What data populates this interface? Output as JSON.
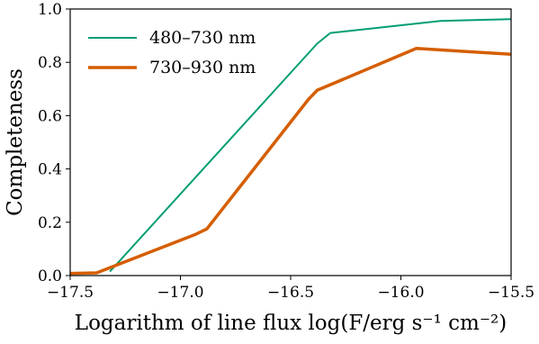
{
  "chart_data": {
    "type": "line",
    "title": "",
    "xlabel": "Logarithm of line flux log(F/erg s⁻¹ cm⁻²)",
    "ylabel": "Completeness",
    "xlim": [
      -17.5,
      -15.5
    ],
    "ylim": [
      0.0,
      1.0
    ],
    "xticks": [
      -17.5,
      -17.0,
      -16.5,
      -16.0,
      -15.5
    ],
    "xtick_labels": [
      "−17.5",
      "−17.0",
      "−16.5",
      "−16.0",
      "−15.5"
    ],
    "yticks": [
      0.0,
      0.2,
      0.4,
      0.6,
      0.8,
      1.0
    ],
    "ytick_labels": [
      "0.0",
      "0.2",
      "0.4",
      "0.6",
      "0.8",
      "1.0"
    ],
    "grid": false,
    "legend_position": "top-left",
    "series": [
      {
        "name": "480–730 nm",
        "color": "#009e73",
        "x": [
          -17.32,
          -16.38,
          -16.32,
          -15.82,
          -15.5
        ],
        "y": [
          0.015,
          0.87,
          0.91,
          0.955,
          0.962
        ]
      },
      {
        "name": "730–930 nm",
        "color": "#d55e00",
        "x": [
          -17.5,
          -17.38,
          -16.93,
          -16.88,
          -16.42,
          -16.38,
          -15.93,
          -15.5
        ],
        "y": [
          0.008,
          0.01,
          0.155,
          0.175,
          0.66,
          0.695,
          0.852,
          0.83
        ]
      }
    ]
  }
}
